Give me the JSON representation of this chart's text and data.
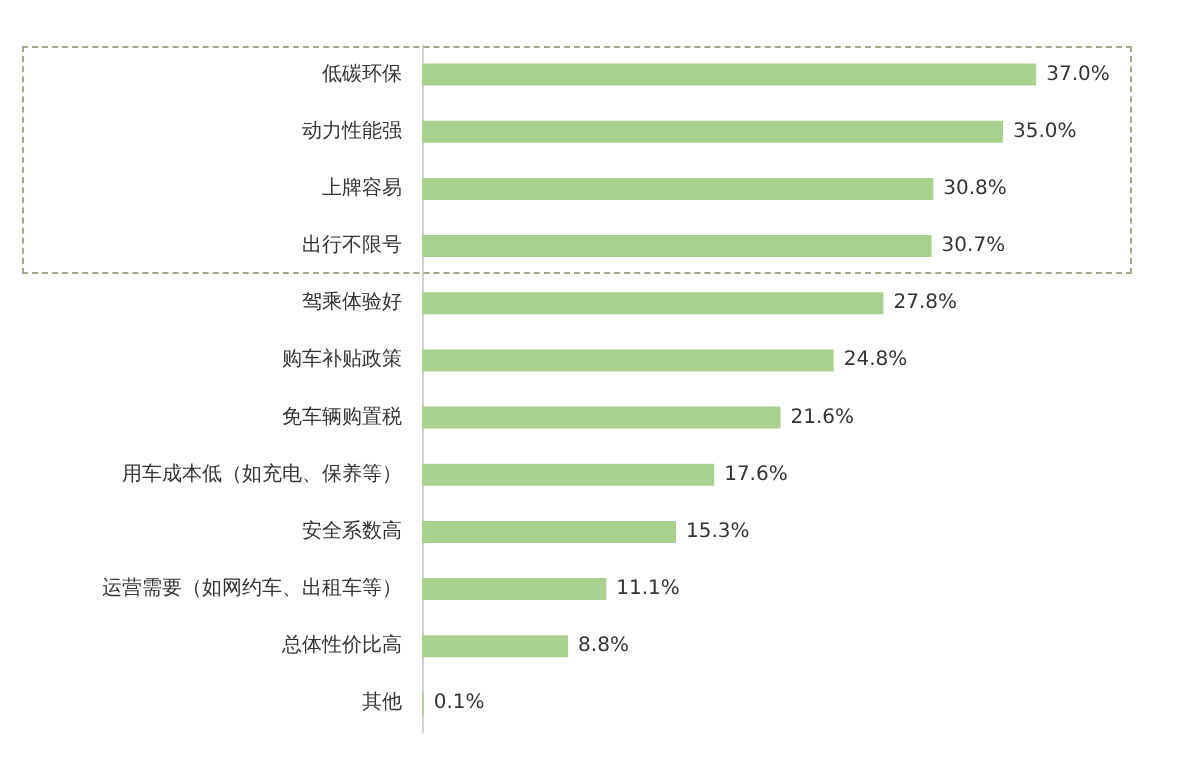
{
  "chart_data": {
    "type": "bar",
    "orientation": "horizontal",
    "categories": [
      "低碳环保",
      "动力性能强",
      "上牌容易",
      "出行不限号",
      "驾乘体验好",
      "购车补贴政策",
      "免车辆购置税",
      "用车成本低（如充电、保养等）",
      "安全系数高",
      "运营需要（如网约车、出租车等）",
      "总体性价比高",
      "其他"
    ],
    "values": [
      37.0,
      35.0,
      30.8,
      30.7,
      27.8,
      24.8,
      21.6,
      17.6,
      15.3,
      11.1,
      8.8,
      0.1
    ],
    "value_labels": [
      "37.0%",
      "35.0%",
      "30.8%",
      "30.7%",
      "27.8%",
      "24.8%",
      "21.6%",
      "17.6%",
      "15.3%",
      "11.1%",
      "8.8%",
      "0.1%"
    ],
    "color": "#a9d18e"
  }
}
